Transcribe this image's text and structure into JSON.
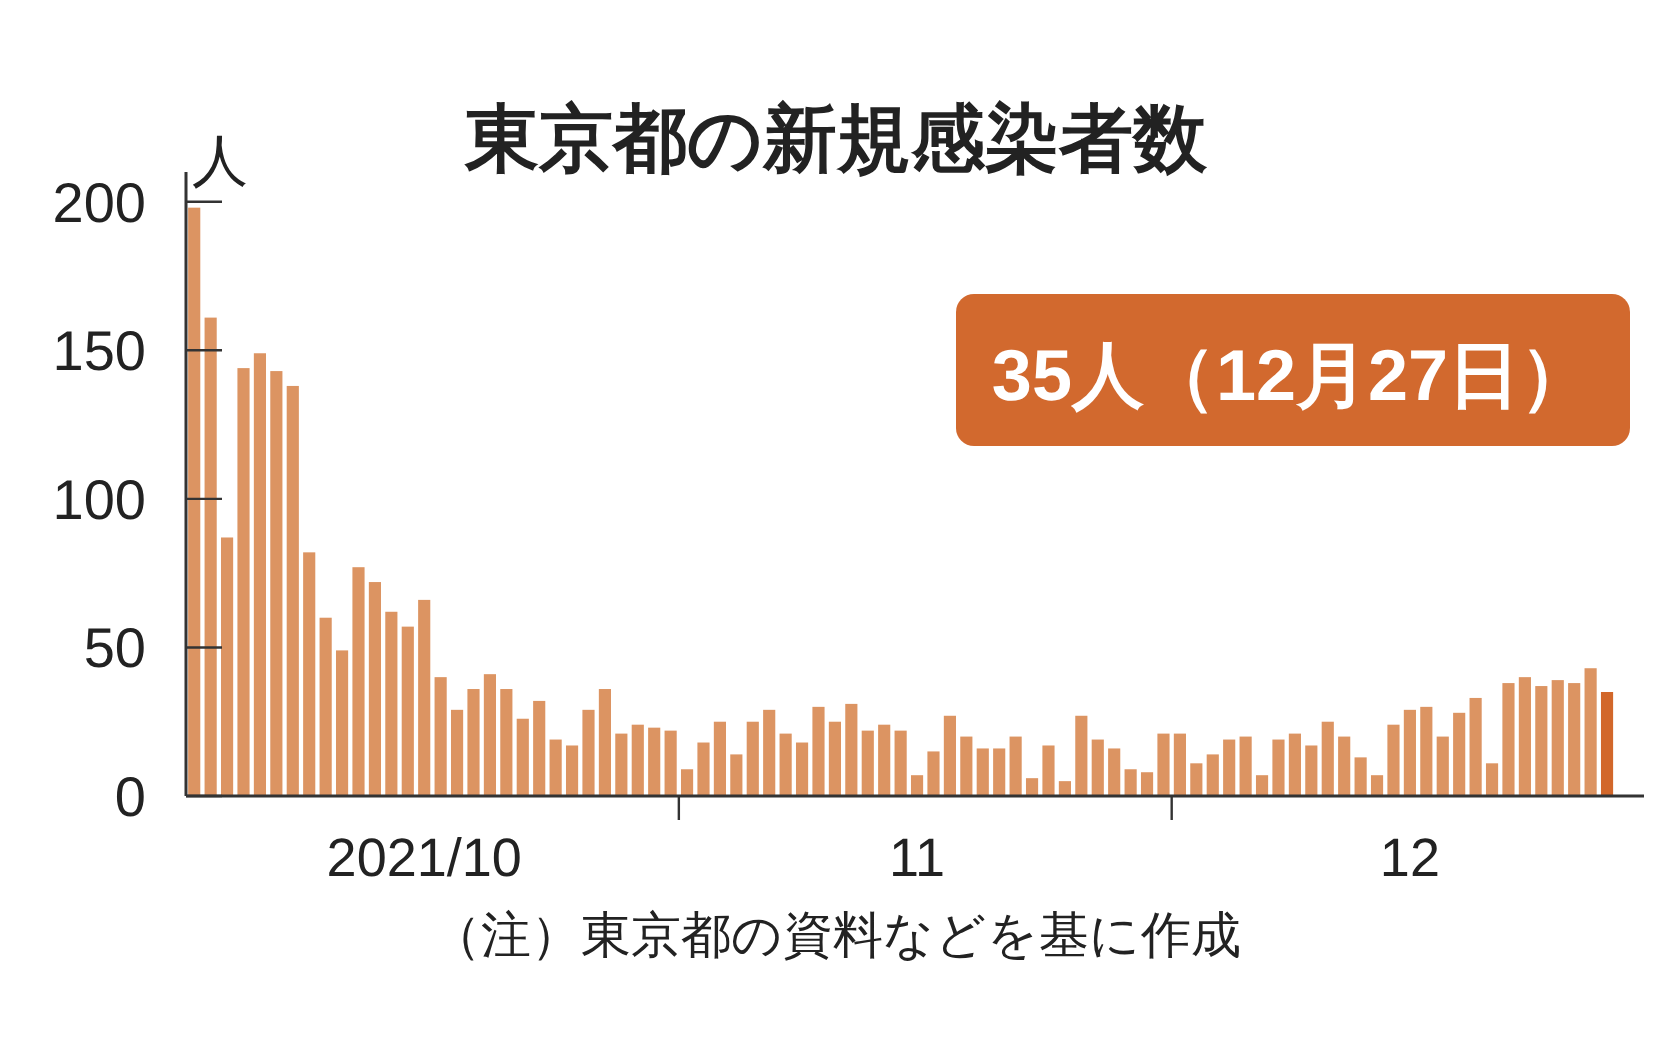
{
  "chart_data": {
    "type": "bar",
    "title": "東京都の新規感染者数",
    "ylabel": "人",
    "annotations": [
      "35人（12月27日）",
      "（注）東京都の資料などを基に作成"
    ],
    "x": [
      "2021-10-02",
      "2021-10-03",
      "2021-10-04",
      "2021-10-05",
      "2021-10-06",
      "2021-10-07",
      "2021-10-08",
      "2021-10-09",
      "2021-10-10",
      "2021-10-11",
      "2021-10-12",
      "2021-10-13",
      "2021-10-14",
      "2021-10-15",
      "2021-10-16",
      "2021-10-17",
      "2021-10-18",
      "2021-10-19",
      "2021-10-20",
      "2021-10-21",
      "2021-10-22",
      "2021-10-23",
      "2021-10-24",
      "2021-10-25",
      "2021-10-26",
      "2021-10-27",
      "2021-10-28",
      "2021-10-29",
      "2021-10-30",
      "2021-10-31",
      "2021-11-01",
      "2021-11-02",
      "2021-11-03",
      "2021-11-04",
      "2021-11-05",
      "2021-11-06",
      "2021-11-07",
      "2021-11-08",
      "2021-11-09",
      "2021-11-10",
      "2021-11-11",
      "2021-11-12",
      "2021-11-13",
      "2021-11-14",
      "2021-11-15",
      "2021-11-16",
      "2021-11-17",
      "2021-11-18",
      "2021-11-19",
      "2021-11-20",
      "2021-11-21",
      "2021-11-22",
      "2021-11-23",
      "2021-11-24",
      "2021-11-25",
      "2021-11-26",
      "2021-11-27",
      "2021-11-28",
      "2021-11-29",
      "2021-11-30",
      "2021-12-01",
      "2021-12-02",
      "2021-12-03",
      "2021-12-04",
      "2021-12-05",
      "2021-12-06",
      "2021-12-07",
      "2021-12-08",
      "2021-12-09",
      "2021-12-10",
      "2021-12-11",
      "2021-12-12",
      "2021-12-13",
      "2021-12-14",
      "2021-12-15",
      "2021-12-16",
      "2021-12-17",
      "2021-12-18",
      "2021-12-19",
      "2021-12-20",
      "2021-12-21",
      "2021-12-22",
      "2021-12-23",
      "2021-12-24",
      "2021-12-25",
      "2021-12-26",
      "2021-12-27"
    ],
    "values": [
      198,
      161,
      87,
      144,
      149,
      143,
      138,
      82,
      60,
      49,
      77,
      72,
      62,
      57,
      66,
      40,
      29,
      36,
      41,
      36,
      26,
      32,
      19,
      17,
      29,
      36,
      21,
      24,
      23,
      22,
      9,
      18,
      25,
      14,
      25,
      29,
      21,
      18,
      30,
      25,
      31,
      22,
      24,
      22,
      7,
      15,
      27,
      20,
      16,
      16,
      20,
      6,
      17,
      5,
      27,
      19,
      16,
      9,
      8,
      21,
      21,
      11,
      14,
      19,
      20,
      7,
      19,
      21,
      17,
      25,
      20,
      13,
      7,
      24,
      29,
      30,
      20,
      28,
      33,
      11,
      38,
      40,
      37,
      39,
      38,
      43,
      35
    ],
    "colors": [
      "#dc9462",
      "#dc9462",
      "#dc9462",
      "#dc9462",
      "#dc9462",
      "#dc9462",
      "#dc9462",
      "#dc9462",
      "#dc9462",
      "#dc9462",
      "#dc9462",
      "#dc9462",
      "#dc9462",
      "#dc9462",
      "#dc9462",
      "#dc9462",
      "#dc9462",
      "#dc9462",
      "#dc9462",
      "#dc9462",
      "#dc9462",
      "#dc9462",
      "#dc9462",
      "#dc9462",
      "#dc9462",
      "#dc9462",
      "#dc9462",
      "#dc9462",
      "#dc9462",
      "#dc9462",
      "#dc9462",
      "#dc9462",
      "#dc9462",
      "#dc9462",
      "#dc9462",
      "#dc9462",
      "#dc9462",
      "#dc9462",
      "#dc9462",
      "#dc9462",
      "#dc9462",
      "#dc9462",
      "#dc9462",
      "#dc9462",
      "#dc9462",
      "#dc9462",
      "#dc9462",
      "#dc9462",
      "#dc9462",
      "#dc9462",
      "#dc9462",
      "#dc9462",
      "#dc9462",
      "#dc9462",
      "#dc9462",
      "#dc9462",
      "#dc9462",
      "#dc9462",
      "#dc9462",
      "#dc9462",
      "#dc9462",
      "#dc9462",
      "#dc9462",
      "#dc9462",
      "#dc9462",
      "#dc9462",
      "#dc9462",
      "#dc9462",
      "#dc9462",
      "#dc9462",
      "#dc9462",
      "#dc9462",
      "#dc9462",
      "#dc9462",
      "#dc9462",
      "#dc9462",
      "#dc9462",
      "#dc9462",
      "#dc9462",
      "#dc9462",
      "#dc9462",
      "#dc9462",
      "#dc9462",
      "#dc9462",
      "#dc9462",
      "#dc9462",
      "#d2672a"
    ],
    "xlim": [
      "2021-10-01T12:00",
      "2021-12-29T06:00"
    ],
    "xticks": [
      {
        "value": "2021-10-16",
        "label": "2021/10"
      },
      {
        "value": "2021-10-31T12:00",
        "label": null
      },
      {
        "value": "2021-11-15",
        "label": "11"
      },
      {
        "value": "2021-11-30T12:00",
        "label": null
      },
      {
        "value": "2021-12-15",
        "label": "12"
      }
    ],
    "ylim": [
      0,
      210
    ],
    "yticks": [
      0,
      50,
      100,
      150,
      200
    ]
  }
}
